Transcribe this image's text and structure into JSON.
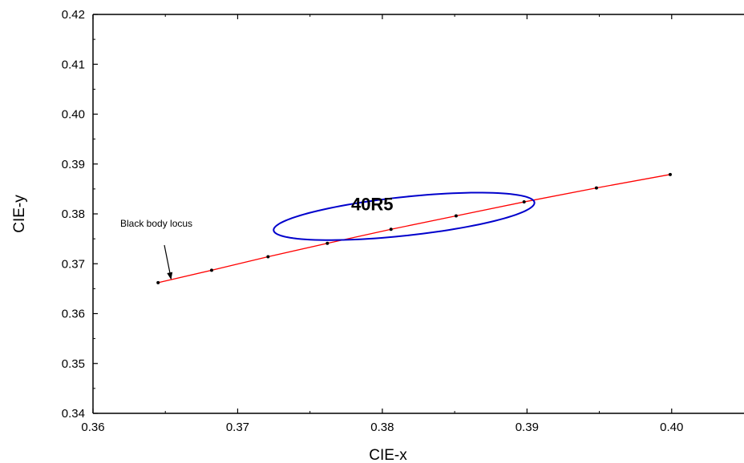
{
  "chart_data": {
    "type": "scatter",
    "title": "",
    "xlabel": "CIE-x",
    "ylabel": "CIE-y",
    "xlim": [
      0.36,
      0.405
    ],
    "ylim": [
      0.34,
      0.42
    ],
    "xticks": [
      "0.36",
      "0.37",
      "0.38",
      "0.39",
      "0.40"
    ],
    "yticks": [
      "0.34",
      "0.35",
      "0.36",
      "0.37",
      "0.38",
      "0.39",
      "0.40",
      "0.41",
      "0.42"
    ],
    "grid": false,
    "series": [
      {
        "name": "Black body locus",
        "kind": "line-with-markers",
        "color": "#ff0000",
        "marker_color": "#000000",
        "x": [
          0.3645,
          0.3682,
          0.3721,
          0.3762,
          0.3806,
          0.3851,
          0.3898,
          0.3948,
          0.3999
        ],
        "y": [
          0.3662,
          0.3687,
          0.3714,
          0.3741,
          0.3769,
          0.3796,
          0.3824,
          0.3852,
          0.3879
        ]
      }
    ],
    "ellipse": {
      "label": "40R5",
      "color": "#0000cc",
      "center": [
        0.3815,
        0.3795
      ],
      "semi_axes": [
        0.0095,
        0.0037
      ],
      "angle_deg": 20
    },
    "annotations": [
      {
        "text": "Black body locus",
        "points_to": [
          0.3654,
          0.3668
        ]
      }
    ]
  }
}
